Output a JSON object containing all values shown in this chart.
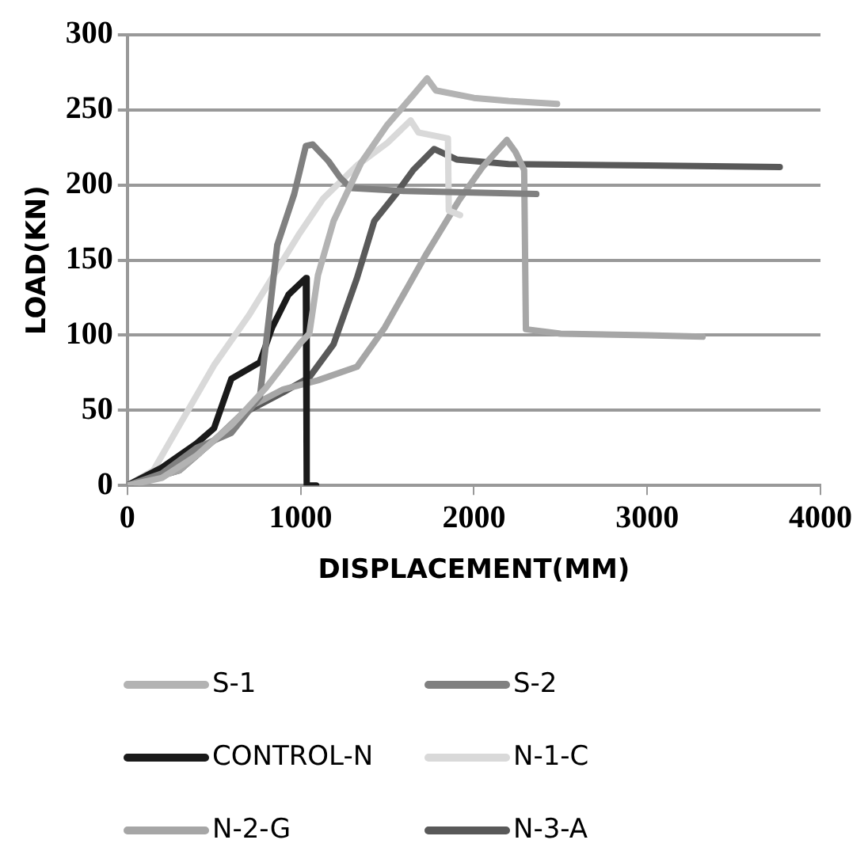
{
  "chart_data": {
    "type": "line",
    "xlabel": "DISPLACEMENT(MM)",
    "ylabel": "LOAD(KN)",
    "xlim": [
      0,
      4000
    ],
    "xticks": [
      0,
      1000,
      2000,
      3000,
      4000
    ],
    "ylim": [
      0,
      300
    ],
    "yticks": [
      0,
      50,
      100,
      150,
      200,
      250,
      300
    ],
    "grid": "y",
    "legend": "bottom",
    "marker": "none",
    "line_style": "solid",
    "series": [
      {
        "name": "S-1",
        "color": "#b3b3b3",
        "x": [
          0,
          200,
          400,
          600,
          800,
          1000,
          1050,
          1100,
          1190,
          1350,
          1500,
          1650,
          1730,
          1780,
          2000,
          2200,
          2480
        ],
        "values": [
          0,
          5,
          20,
          40,
          65,
          95,
          101,
          140,
          176,
          215,
          240,
          260,
          271,
          263,
          258,
          256,
          254
        ]
      },
      {
        "name": "S-2",
        "color": "#808080",
        "x": [
          0,
          200,
          400,
          600,
          765,
          865,
          963,
          1030,
          1070,
          1160,
          1228,
          1290,
          1600,
          2000,
          2360
        ],
        "values": [
          0,
          8,
          25,
          35,
          59,
          160,
          194,
          226,
          227,
          216,
          205,
          198,
          196,
          195,
          194
        ]
      },
      {
        "name": "CONTROL-N",
        "color": "#1a1a1a",
        "x": [
          0,
          200,
          400,
          500,
          600,
          765,
          835,
          930,
          1030,
          1035,
          1090
        ],
        "values": [
          0,
          12,
          28,
          38,
          71,
          82,
          105,
          127,
          138,
          0,
          0
        ]
      },
      {
        "name": "N-1-C",
        "color": "#d9d9d9",
        "x": [
          0,
          150,
          300,
          500,
          700,
          995,
          1130,
          1325,
          1500,
          1635,
          1680,
          1850,
          1855,
          1920
        ],
        "values": [
          0,
          10,
          40,
          80,
          113,
          168,
          191,
          213,
          228,
          243,
          235,
          231,
          183,
          180
        ]
      },
      {
        "name": "N-2-G",
        "color": "#a6a6a6",
        "x": [
          0,
          300,
          500,
          700,
          900,
          1100,
          1325,
          1485,
          1720,
          1915,
          2050,
          2190,
          2240,
          2290,
          2300,
          2500,
          3000,
          3320
        ],
        "values": [
          0,
          10,
          30,
          52,
          64,
          70,
          79,
          105,
          153,
          190,
          212,
          230,
          222,
          210,
          104,
          101,
          100,
          99
        ]
      },
      {
        "name": "N-3-A",
        "color": "#595959",
        "x": [
          0,
          300,
          500,
          700,
          900,
          1050,
          1190,
          1325,
          1425,
          1550,
          1650,
          1770,
          1900,
          2200,
          3000,
          3765
        ],
        "values": [
          0,
          10,
          30,
          50,
          62,
          72,
          94,
          138,
          176,
          194,
          210,
          224,
          217,
          214,
          213,
          212
        ]
      }
    ]
  }
}
